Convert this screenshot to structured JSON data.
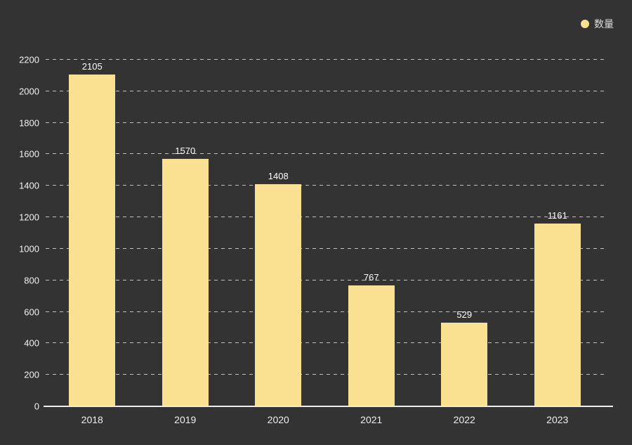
{
  "legend": {
    "label": "数量"
  },
  "chart_data": {
    "type": "bar",
    "title": "",
    "series_name": "数量",
    "categories": [
      "2018",
      "2019",
      "2020",
      "2021",
      "2022",
      "2023"
    ],
    "values": [
      2105,
      1570,
      1408,
      767,
      529,
      1161
    ],
    "xlabel": "",
    "ylabel": "",
    "ylim": [
      0,
      2200
    ],
    "ytick_interval": 200,
    "ytick_labels": [
      "0",
      "200",
      "400",
      "600",
      "800",
      "1000",
      "1200",
      "1400",
      "1600",
      "1800",
      "2000",
      "2200"
    ],
    "grid": "horizontal-dashed",
    "legend_position": "top-right",
    "value_labels_shown": true
  },
  "colors": {
    "background": "#333333",
    "bar": "#FAE191",
    "text": "#FFFFFF",
    "gridline": "#C8C8C8",
    "axis": "#EEEEEE"
  }
}
